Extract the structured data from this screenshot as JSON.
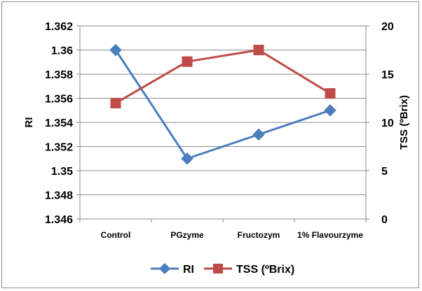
{
  "chart_data": {
    "type": "line",
    "categories": [
      "Control",
      "PGzyme",
      "Fructozym",
      "1% Flavourzyme"
    ],
    "series": [
      {
        "name": "RI",
        "axis": "left",
        "values": [
          1.36,
          1.351,
          1.353,
          1.355
        ],
        "color": "#4a7ebb",
        "marker": "diamond"
      },
      {
        "name": "TSS (ºBrix)",
        "axis": "right",
        "values": [
          12,
          16.3,
          17.5,
          13
        ],
        "color": "#be4b48",
        "marker": "square"
      }
    ],
    "ylabel": "RI",
    "y2label": "TSS (ºBrix)",
    "ylim": [
      1.346,
      1.362
    ],
    "y_ticks": [
      "1.362",
      "1.36",
      "1.358",
      "1.356",
      "1.354",
      "1.352",
      "1.35",
      "1.348",
      "1.346"
    ],
    "y2lim": [
      0,
      20
    ],
    "y2_ticks": [
      "20",
      "15",
      "10",
      "5",
      "0"
    ],
    "grid": true,
    "legend_position": "bottom"
  }
}
